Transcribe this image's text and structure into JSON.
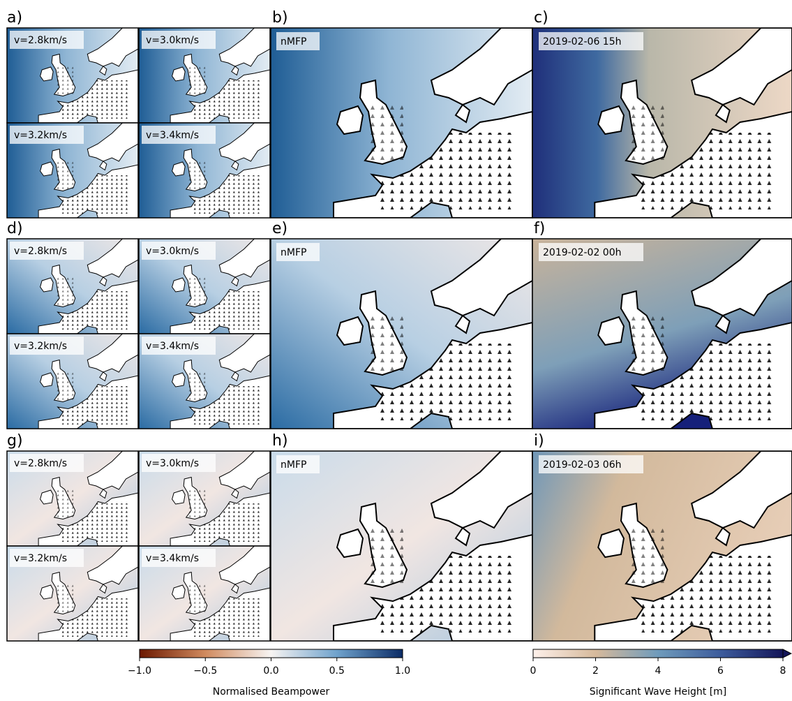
{
  "rows": [
    {
      "letters": [
        "a)",
        "b)",
        "c)"
      ],
      "small_labels": [
        "v=2.8km/s",
        "v=3.0km/s",
        "v=3.2km/s",
        "v=3.4km/s"
      ],
      "middle_label": "nMFP",
      "right_label": "2019-02-06 15h"
    },
    {
      "letters": [
        "d)",
        "e)",
        "f)"
      ],
      "small_labels": [
        "v=2.8km/s",
        "v=3.0km/s",
        "v=3.2km/s",
        "v=3.4km/s"
      ],
      "middle_label": "nMFP",
      "right_label": "2019-02-02 00h"
    },
    {
      "letters": [
        "g)",
        "h)",
        "i)"
      ],
      "small_labels": [
        "v=2.8km/s",
        "v=3.0km/s",
        "v=3.2km/s",
        "v=3.4km/s"
      ],
      "middle_label": "nMFP",
      "right_label": "2019-02-03 06h"
    }
  ],
  "colorbars": [
    {
      "label": "Normalised Beampower",
      "lim": [
        -1,
        1
      ],
      "ticks": [
        {
          "value": -1,
          "label": "−1.0"
        },
        {
          "value": -0.5,
          "label": "−0.5"
        },
        {
          "value": 0,
          "label": "0.0"
        },
        0.5,
        {
          "value": 1,
          "label": "1.0"
        }
      ]
    },
    {
      "label": "Significant Wave Height [m]",
      "lim": [
        0,
        8
      ],
      "ticks": [
        0,
        2,
        4,
        6,
        8
      ]
    }
  ]
}
